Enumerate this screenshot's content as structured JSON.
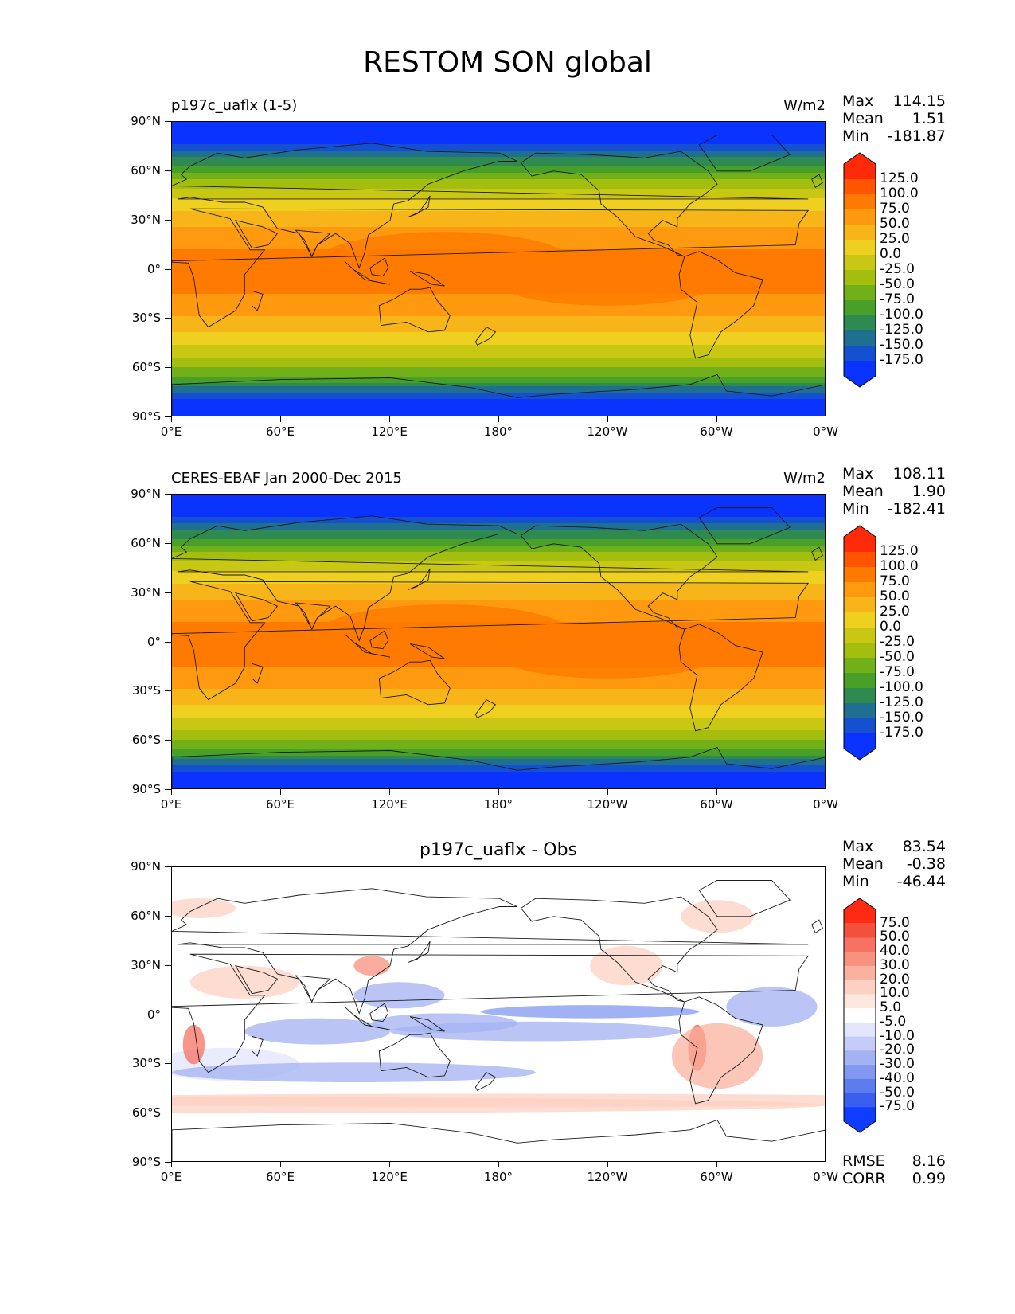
{
  "figure": {
    "title": "RESTOM SON global",
    "x_ticks": [
      "0°E",
      "60°E",
      "120°E",
      "180°",
      "120°W",
      "60°W",
      "0°W"
    ],
    "y_ticks": [
      "90°N",
      "60°N",
      "30°N",
      "0°",
      "30°S",
      "60°S",
      "90°S"
    ]
  },
  "panels": [
    {
      "id": "model",
      "left_title": "p197c_uaflx (1-5)",
      "right_title": "W/m2",
      "center_title": "",
      "stats": [
        {
          "label": "Max",
          "value": "114.15"
        },
        {
          "label": "Mean",
          "value": "1.51"
        },
        {
          "label": "Min",
          "value": "-181.87"
        }
      ],
      "colorbar": {
        "labels": [
          "125.0",
          "100.0",
          "75.0",
          "50.0",
          "25.0",
          "0.0",
          "-25.0",
          "-50.0",
          "-75.0",
          "-100.0",
          "-125.0",
          "-150.0",
          "-175.0"
        ],
        "colors": [
          "#ff2a0a",
          "#ff5500",
          "#ff7a00",
          "#ff9a10",
          "#f7b51a",
          "#efd020",
          "#c8c814",
          "#a4be10",
          "#72b01a",
          "#48a028",
          "#2e8a50",
          "#1f7090",
          "#1550d0",
          "#0a33ff"
        ]
      }
    },
    {
      "id": "obs",
      "left_title": "CERES-EBAF Jan 2000-Dec 2015",
      "right_title": "W/m2",
      "center_title": "",
      "stats": [
        {
          "label": "Max",
          "value": "108.11"
        },
        {
          "label": "Mean",
          "value": "1.90"
        },
        {
          "label": "Min",
          "value": "-182.41"
        }
      ],
      "colorbar": {
        "labels": [
          "125.0",
          "100.0",
          "75.0",
          "50.0",
          "25.0",
          "0.0",
          "-25.0",
          "-50.0",
          "-75.0",
          "-100.0",
          "-125.0",
          "-150.0",
          "-175.0"
        ],
        "colors": [
          "#ff2a0a",
          "#ff5500",
          "#ff7a00",
          "#ff9a10",
          "#f7b51a",
          "#efd020",
          "#c8c814",
          "#a4be10",
          "#72b01a",
          "#48a028",
          "#2e8a50",
          "#1f7090",
          "#1550d0",
          "#0a33ff"
        ]
      }
    },
    {
      "id": "diff",
      "left_title": "",
      "right_title": "",
      "center_title": "p197c_uaflx - Obs",
      "stats": [
        {
          "label": "Max",
          "value": "83.54"
        },
        {
          "label": "Mean",
          "value": "-0.38"
        },
        {
          "label": "Min",
          "value": "-46.44"
        }
      ],
      "extra_stats": [
        {
          "label": "RMSE",
          "value": "8.16"
        },
        {
          "label": "CORR",
          "value": "0.99"
        }
      ],
      "colorbar": {
        "labels": [
          "75.0",
          "50.0",
          "40.0",
          "30.0",
          "20.0",
          "10.0",
          "5.0",
          "-5.0",
          "-10.0",
          "-20.0",
          "-30.0",
          "-40.0",
          "-50.0",
          "-75.0"
        ],
        "colors": [
          "#ff2a12",
          "#f4513c",
          "#f77262",
          "#f8927f",
          "#fab19f",
          "#fcd0c2",
          "#fde8e0",
          "#ffffff",
          "#e2e6fb",
          "#c5cdf7",
          "#a3b2f3",
          "#8298f0",
          "#5f7cee",
          "#3a5ff0",
          "#0f3cff"
        ]
      }
    }
  ]
}
